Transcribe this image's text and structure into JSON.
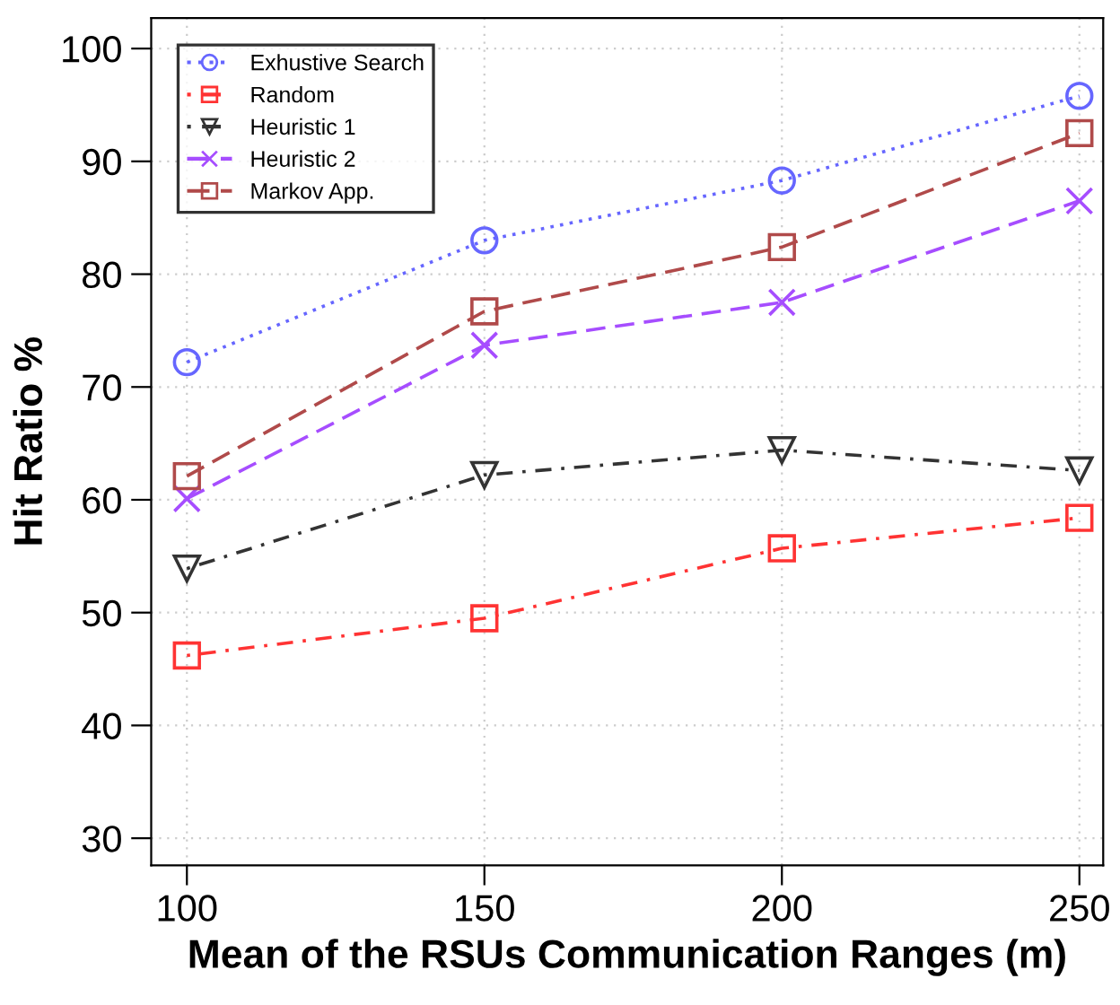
{
  "chart_data": {
    "type": "line",
    "xlabel": "Mean of the RSUs Communication Ranges (m)",
    "ylabel": "Hit Ratio %",
    "x": [
      100,
      150,
      200,
      250
    ],
    "series": [
      {
        "name": "Exhustive Search",
        "color": "#6666ff",
        "values": [
          72.2,
          83.0,
          88.3,
          95.8
        ],
        "marker": "circle",
        "line_style": "dotted"
      },
      {
        "name": "Random",
        "color": "#ff3333",
        "values": [
          46.2,
          49.5,
          55.7,
          58.4
        ],
        "marker": "square",
        "line_style": "dashdot"
      },
      {
        "name": "Heuristic 1",
        "color": "#333333",
        "values": [
          53.9,
          62.2,
          64.4,
          62.6
        ],
        "marker": "triangle",
        "line_style": "dashdot"
      },
      {
        "name": "Heuristic 2",
        "color": "#a64dff",
        "values": [
          60.1,
          73.7,
          77.5,
          86.5
        ],
        "marker": "cross",
        "line_style": "dashed"
      },
      {
        "name": "Markov App.",
        "color": "#b04a4a",
        "values": [
          62.1,
          76.7,
          82.4,
          92.5
        ],
        "marker": "square",
        "line_style": "dashed"
      }
    ],
    "xlim": [
      94,
      254
    ],
    "ylim": [
      27.6,
      102.7
    ],
    "xticks": [
      100,
      150,
      200,
      250
    ],
    "yticks": [
      30,
      40,
      50,
      60,
      70,
      80,
      90,
      100
    ],
    "grid": true,
    "legend": "top left"
  }
}
